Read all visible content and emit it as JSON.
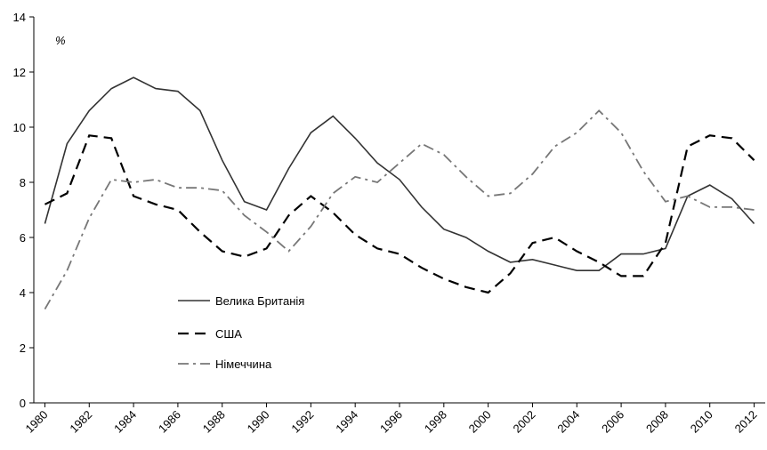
{
  "chart_data": {
    "type": "line",
    "unit_label": "%",
    "x": [
      1980,
      1981,
      1982,
      1983,
      1984,
      1985,
      1986,
      1987,
      1988,
      1989,
      1990,
      1991,
      1992,
      1993,
      1994,
      1995,
      1996,
      1997,
      1998,
      1999,
      2000,
      2001,
      2002,
      2003,
      2004,
      2005,
      2006,
      2007,
      2008,
      2009,
      2010,
      2011,
      2012
    ],
    "xlim": [
      1979.5,
      2012.5
    ],
    "xticks": [
      1980,
      1982,
      1984,
      1986,
      1988,
      1990,
      1992,
      1994,
      1996,
      1998,
      2000,
      2002,
      2004,
      2006,
      2008,
      2010,
      2012
    ],
    "ylim": [
      0,
      14
    ],
    "yticks": [
      0,
      2,
      4,
      6,
      8,
      10,
      12,
      14
    ],
    "series": [
      {
        "name": "Велика Британія",
        "color": "#333333",
        "dash": "solid",
        "values": [
          6.5,
          9.4,
          10.6,
          11.4,
          11.8,
          11.4,
          11.3,
          10.6,
          8.8,
          7.3,
          7.0,
          8.5,
          9.8,
          10.4,
          9.6,
          8.7,
          8.1,
          7.1,
          6.3,
          6.0,
          5.5,
          5.1,
          5.2,
          5.0,
          4.8,
          4.8,
          5.4,
          5.4,
          5.6,
          7.5,
          7.9,
          7.4,
          6.5
        ]
      },
      {
        "name": "США",
        "color": "#000000",
        "dash": "dashed",
        "values": [
          7.2,
          7.6,
          9.7,
          9.6,
          7.5,
          7.2,
          7.0,
          6.2,
          5.5,
          5.3,
          5.6,
          6.8,
          7.5,
          6.9,
          6.1,
          5.6,
          5.4,
          4.9,
          4.5,
          4.2,
          4.0,
          4.7,
          5.8,
          6.0,
          5.5,
          5.1,
          4.6,
          4.6,
          5.8,
          9.3,
          9.7,
          9.6,
          8.8
        ]
      },
      {
        "name": "Німеччина",
        "color": "#777777",
        "dash": "dashdot",
        "values": [
          3.4,
          4.8,
          6.7,
          8.1,
          8.0,
          8.1,
          7.8,
          7.8,
          7.7,
          6.8,
          6.2,
          5.5,
          6.4,
          7.6,
          8.2,
          8.0,
          8.7,
          9.4,
          9.0,
          8.2,
          7.5,
          7.6,
          8.3,
          9.3,
          9.8,
          10.6,
          9.8,
          8.4,
          7.3,
          7.5,
          7.1,
          7.1,
          7.0
        ]
      }
    ]
  }
}
